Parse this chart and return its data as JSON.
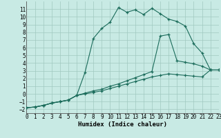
{
  "bg_color": "#c8eae4",
  "grid_color": "#a0c8c0",
  "line_color": "#1a6b5a",
  "xlabel": "Humidex (Indice chaleur)",
  "xlim": [
    0,
    23
  ],
  "ylim": [
    -2.5,
    12
  ],
  "xticks": [
    0,
    1,
    2,
    3,
    4,
    5,
    6,
    7,
    8,
    9,
    10,
    11,
    12,
    13,
    14,
    15,
    16,
    17,
    18,
    19,
    20,
    21,
    22,
    23
  ],
  "yticks": [
    -2,
    -1,
    0,
    1,
    2,
    3,
    4,
    5,
    6,
    7,
    8,
    9,
    10,
    11
  ],
  "curve1_x": [
    0,
    1,
    2,
    3,
    4,
    5,
    6,
    7,
    8,
    9,
    10,
    11,
    12,
    13,
    14,
    15,
    16,
    17,
    18,
    19,
    20,
    21,
    22,
    23
  ],
  "curve1_y": [
    -1.8,
    -1.7,
    -1.5,
    -1.2,
    -1.0,
    -0.8,
    -0.2,
    2.8,
    7.2,
    8.5,
    9.3,
    11.2,
    10.6,
    10.9,
    10.3,
    11.1,
    10.4,
    9.7,
    9.4,
    8.8,
    6.5,
    5.3,
    3.1,
    3.1
  ],
  "curve2_x": [
    0,
    1,
    2,
    3,
    4,
    5,
    6,
    7,
    8,
    9,
    10,
    11,
    12,
    13,
    14,
    15,
    16,
    17,
    18,
    19,
    20,
    21,
    22,
    23
  ],
  "curve2_y": [
    -1.8,
    -1.7,
    -1.5,
    -1.2,
    -1.0,
    -0.8,
    -0.2,
    0.1,
    0.4,
    0.6,
    1.0,
    1.3,
    1.7,
    2.1,
    2.5,
    2.9,
    7.5,
    7.7,
    4.3,
    4.1,
    3.9,
    3.6,
    3.1,
    3.1
  ],
  "curve3_x": [
    0,
    1,
    2,
    3,
    4,
    5,
    6,
    7,
    8,
    9,
    10,
    11,
    12,
    13,
    14,
    15,
    16,
    17,
    18,
    19,
    20,
    21,
    22,
    23
  ],
  "curve3_y": [
    -1.8,
    -1.7,
    -1.5,
    -1.2,
    -1.0,
    -0.8,
    -0.2,
    0.0,
    0.2,
    0.4,
    0.7,
    1.0,
    1.3,
    1.6,
    1.9,
    2.2,
    2.4,
    2.6,
    2.5,
    2.4,
    2.3,
    2.2,
    3.1,
    3.1
  ]
}
